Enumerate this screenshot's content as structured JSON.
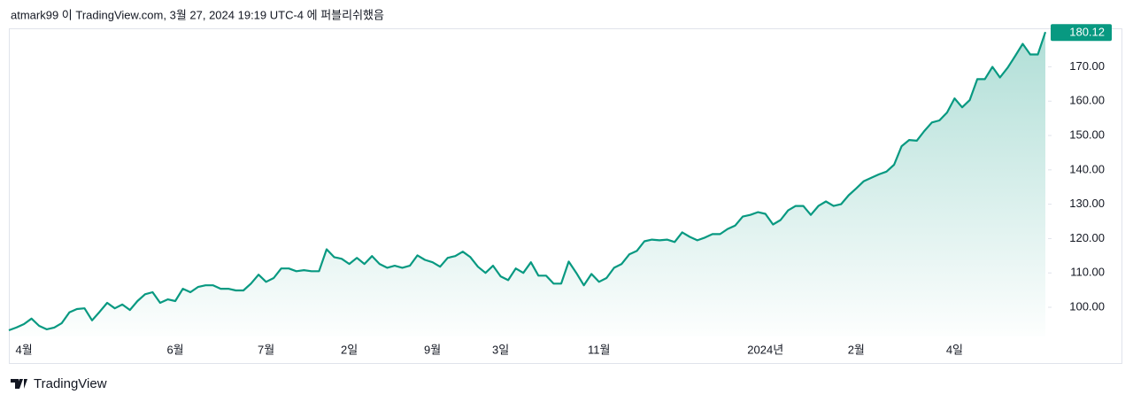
{
  "chart_data": {
    "type": "area",
    "title": "atmark99 이 TradingView.com, 3월 27, 2024 19:19 UTC-4 에 퍼블리쉬했음",
    "source": "TradingView",
    "color": "#089981",
    "categories": [
      null,
      null,
      "4월",
      null,
      null,
      null,
      null,
      null,
      null,
      null,
      null,
      null,
      null,
      null,
      null,
      null,
      null,
      null,
      null,
      null,
      null,
      null,
      "6월",
      null,
      null,
      null,
      null,
      null,
      null,
      null,
      null,
      null,
      null,
      null,
      "7월",
      null,
      null,
      null,
      null,
      null,
      null,
      null,
      null,
      null,
      null,
      "2일",
      null,
      null,
      null,
      null,
      null,
      null,
      null,
      null,
      null,
      null,
      "9월",
      null,
      null,
      null,
      null,
      null,
      null,
      null,
      null,
      "3일",
      null,
      null,
      null,
      null,
      null,
      null,
      null,
      null,
      null,
      null,
      null,
      null,
      "11월",
      null,
      null,
      null,
      null,
      null,
      null,
      null,
      null,
      null,
      null,
      null,
      null,
      null,
      null,
      null,
      null,
      null,
      null,
      null,
      null,
      null,
      "2024년",
      null,
      null,
      null,
      null,
      null,
      null,
      null,
      null,
      null,
      null,
      null,
      "2월",
      null,
      null,
      null,
      null,
      null,
      null,
      null,
      null,
      null,
      null,
      null,
      null,
      "4일",
      null,
      null,
      null,
      null,
      null,
      null,
      null,
      null,
      null,
      null,
      null,
      null
    ],
    "values": [
      93.3,
      94.1,
      95.1,
      96.7,
      94.6,
      93.6,
      94.1,
      95.4,
      98.5,
      99.5,
      99.7,
      96.2,
      98.7,
      101.3,
      99.7,
      100.8,
      99.2,
      101.8,
      103.8,
      104.4,
      101.3,
      102.3,
      101.8,
      105.4,
      104.4,
      105.9,
      106.4,
      106.4,
      105.4,
      105.4,
      104.9,
      104.9,
      106.9,
      109.5,
      107.4,
      108.5,
      111.3,
      111.3,
      110.5,
      110.8,
      110.5,
      110.5,
      116.9,
      114.6,
      114.1,
      112.6,
      114.4,
      112.6,
      114.9,
      112.6,
      111.5,
      112.1,
      111.5,
      112.1,
      115.1,
      113.8,
      113.1,
      111.8,
      114.4,
      114.9,
      116.2,
      114.6,
      111.8,
      110.0,
      112.1,
      109.0,
      107.9,
      111.3,
      110.0,
      113.1,
      109.2,
      109.2,
      106.9,
      106.9,
      113.3,
      110.0,
      106.4,
      109.7,
      107.4,
      108.5,
      111.5,
      112.6,
      115.4,
      116.4,
      119.2,
      119.7,
      119.5,
      119.7,
      119.0,
      121.8,
      120.5,
      119.5,
      120.3,
      121.3,
      121.3,
      122.8,
      123.8,
      126.4,
      126.9,
      127.7,
      127.2,
      124.1,
      125.4,
      128.2,
      129.5,
      129.5,
      126.9,
      129.5,
      130.8,
      129.5,
      130.0,
      132.6,
      134.6,
      136.7,
      137.7,
      138.7,
      139.5,
      141.5,
      146.9,
      148.7,
      148.5,
      151.3,
      153.8,
      154.4,
      156.7,
      160.8,
      158.2,
      160.3,
      166.4,
      166.4,
      170.0,
      166.9,
      169.7,
      173.1,
      176.7,
      173.6,
      173.6,
      180.12
    ],
    "ylim": [
      91.5,
      181.2
    ],
    "yticks": [
      {
        "value": 100,
        "label": "100.00"
      },
      {
        "value": 110,
        "label": "110.00"
      },
      {
        "value": 120,
        "label": "120.00"
      },
      {
        "value": 130,
        "label": "130.00"
      },
      {
        "value": 140,
        "label": "140.00"
      },
      {
        "value": 150,
        "label": "150.00"
      },
      {
        "value": 160,
        "label": "160.00"
      },
      {
        "value": 170,
        "label": "170.00"
      }
    ]
  }
}
